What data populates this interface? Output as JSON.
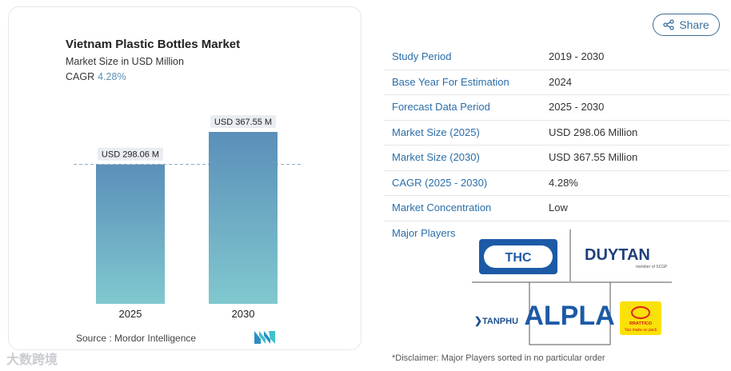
{
  "chart": {
    "title": "Vietnam Plastic Bottles Market",
    "subtitle": "Market Size in USD Million",
    "cagr_label": "CAGR",
    "cagr_value": "4.28%",
    "source": "Source : Mordor Intelligence"
  },
  "chart_data": {
    "type": "bar",
    "categories": [
      "2025",
      "2030"
    ],
    "values": [
      298.06,
      367.55
    ],
    "value_labels": [
      "USD 298.06 M",
      "USD 367.55 M"
    ],
    "title": "Vietnam Plastic Bottles Market",
    "ylabel": "",
    "xlabel": "",
    "colors": {
      "bar_top": "#5b8fb9",
      "bar_bottom": "#7fc6cf",
      "reference_line": "#7fa6c6"
    }
  },
  "share": {
    "label": "Share",
    "icon": "share-icon"
  },
  "table": {
    "rows": [
      {
        "key": "Study Period",
        "value": "2019 - 2030"
      },
      {
        "key": "Base Year For Estimation",
        "value": "2024"
      },
      {
        "key": "Forecast Data Period",
        "value": "2025 - 2030"
      },
      {
        "key": "Market Size (2025)",
        "value": "USD 298.06 Million"
      },
      {
        "key": "Market Size (2030)",
        "value": "USD 367.55 Million"
      },
      {
        "key": "CAGR (2025 - 2030)",
        "value": "4.28%"
      },
      {
        "key": "Market Concentration",
        "value": "Low"
      }
    ]
  },
  "players": {
    "label": "Major Players",
    "logos": {
      "thc": "THC",
      "duytan": "DUYTAN",
      "duytan_sub": "member of SCGP",
      "tanphu": "TANPHU",
      "alpla": "ALPLA",
      "rang_dong": "RRATTICO",
      "rang_dong_slogan": "You make us pack"
    }
  },
  "disclaimer": "*Disclaimer: Major Players sorted in no particular order",
  "watermark": "大数跨境"
}
